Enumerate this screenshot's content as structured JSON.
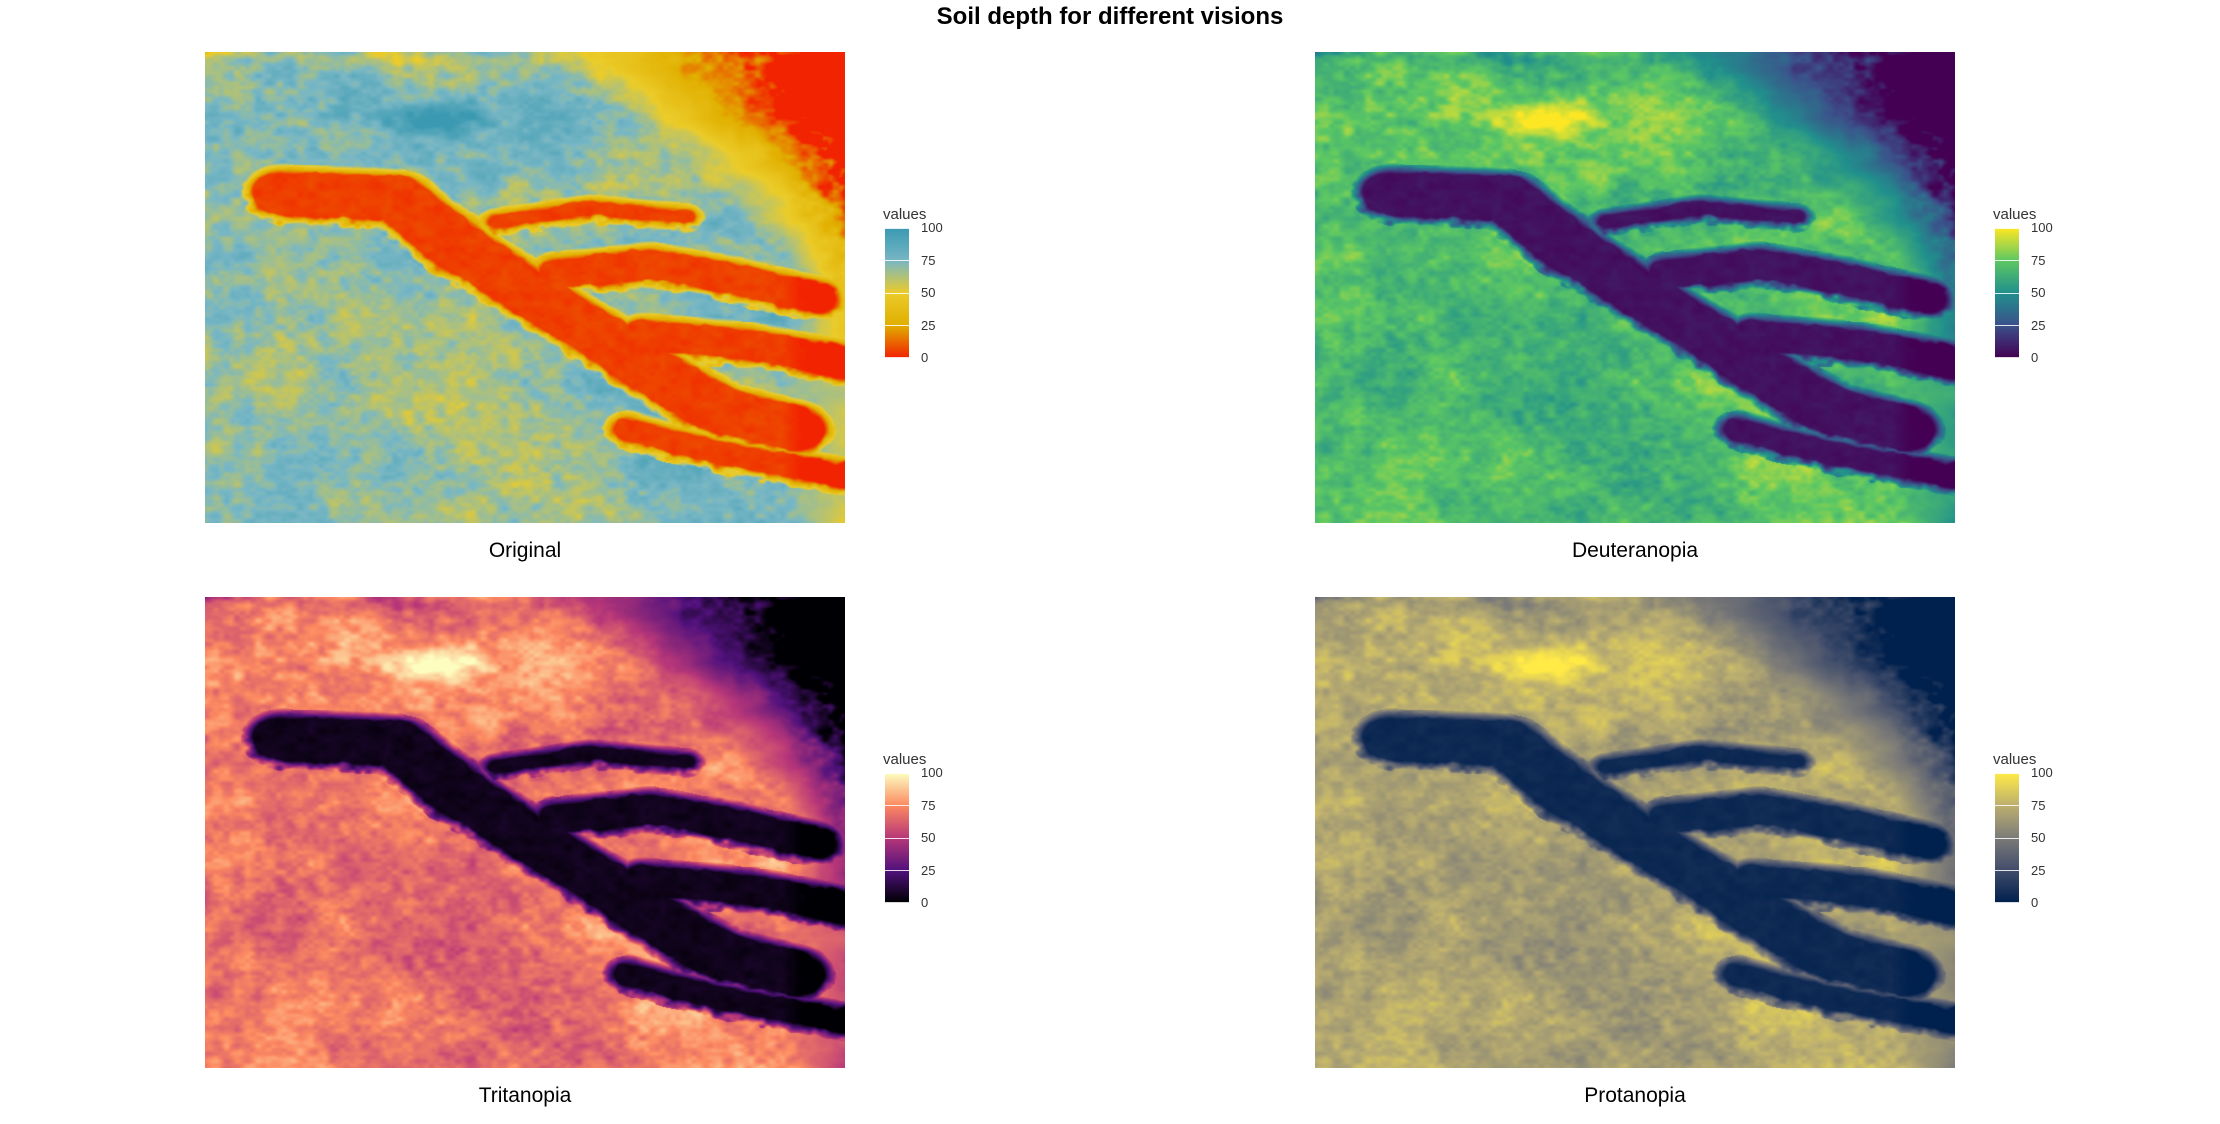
{
  "title": "Soil depth for different visions",
  "legend": {
    "title": "values",
    "ticks": [
      {
        "value": 100,
        "label": "100"
      },
      {
        "value": 75,
        "label": "75"
      },
      {
        "value": 50,
        "label": "50"
      },
      {
        "value": 25,
        "label": "25"
      },
      {
        "value": 0,
        "label": "0"
      }
    ]
  },
  "panels": [
    {
      "caption": "Original",
      "palette": [
        "#f22300",
        "#e1af00",
        "#ebcc2a",
        "#78b7c5",
        "#3b9ab2"
      ]
    },
    {
      "caption": "Deuteranopia",
      "palette": [
        "#440154",
        "#3b528b",
        "#21908c",
        "#5dc863",
        "#fde725"
      ]
    },
    {
      "caption": "Tritanopia",
      "palette": [
        "#000004",
        "#51127c",
        "#b73779",
        "#fc8961",
        "#fcfdbf"
      ]
    },
    {
      "caption": "Protanopia",
      "palette": [
        "#00204d",
        "#414d6b",
        "#7c7b78",
        "#bcaf6f",
        "#ffea46"
      ]
    }
  ]
}
